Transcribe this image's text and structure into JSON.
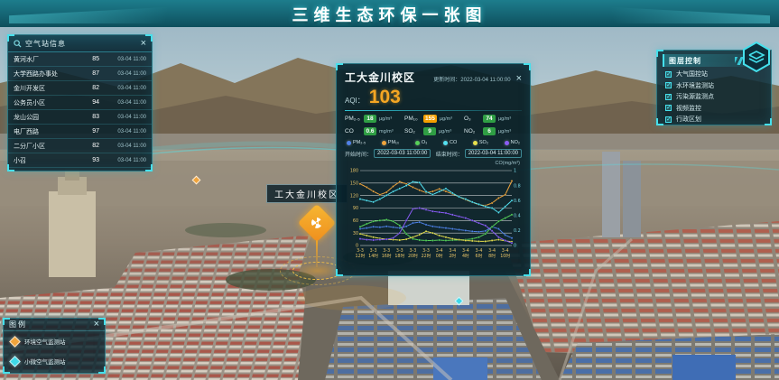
{
  "header": {
    "title": "三维生态环保一张图"
  },
  "station_panel": {
    "title": "空气站信息",
    "rows": [
      {
        "name": "黄河水厂",
        "aqi": "85",
        "time": "03-04 11:00"
      },
      {
        "name": "大学西路办事处",
        "aqi": "87",
        "time": "03-04 11:00"
      },
      {
        "name": "金川开发区",
        "aqi": "82",
        "time": "03-04 11:00"
      },
      {
        "name": "公务员小区",
        "aqi": "94",
        "time": "03-04 11:00"
      },
      {
        "name": "龙山公园",
        "aqi": "83",
        "time": "03-04 11:00"
      },
      {
        "name": "电厂西路",
        "aqi": "97",
        "time": "03-04 11:00"
      },
      {
        "name": "二分厂小区",
        "aqi": "82",
        "time": "03-04 11:00"
      },
      {
        "name": "小召",
        "aqi": "93",
        "time": "03-04 11:00"
      }
    ]
  },
  "popup": {
    "title": "工大金川校区",
    "update_label": "更新时间：",
    "update_time": "2022-03-04 11:00:00",
    "aqi_label": "AQI：",
    "aqi_value": "103",
    "pollutants": [
      {
        "label": "PM₂.₅",
        "value": "18",
        "unit": "µg/m³",
        "level": "good"
      },
      {
        "label": "PM₁₀",
        "value": "155",
        "unit": "µg/m³",
        "level": "moderate"
      },
      {
        "label": "O₃",
        "value": "74",
        "unit": "µg/m³",
        "level": "good"
      },
      {
        "label": "CO",
        "value": "0.6",
        "unit": "mg/m³",
        "level": "good"
      },
      {
        "label": "SO₂",
        "value": "9",
        "unit": "µg/m³",
        "level": "good"
      },
      {
        "label": "NO₂",
        "value": "6",
        "unit": "µg/m³",
        "level": "good"
      }
    ],
    "start_label": "开始时间：",
    "start_time": "2022-03-03 11:00:00",
    "end_label": "结束时间：",
    "end_time": "2022-03-04 11:00:00",
    "right_axis_note": "CO(mg/m³)"
  },
  "chart_data": {
    "type": "line",
    "x": [
      "3-3 12时",
      "3-3 13时",
      "3-3 14时",
      "3-3 15时",
      "3-3 16时",
      "3-3 17时",
      "3-3 18时",
      "3-3 19时",
      "3-3 20时",
      "3-3 21时",
      "3-3 22时",
      "3-3 23时",
      "3-4 0时",
      "3-4 1时",
      "3-4 2时",
      "3-4 3时",
      "3-4 4时",
      "3-4 5时",
      "3-4 6时",
      "3-4 7时",
      "3-4 8时",
      "3-4 9时",
      "3-4 10时",
      "3-4 11时"
    ],
    "x_label_step": 2,
    "ylim_left": [
      0,
      180
    ],
    "ytick_step_left": 30,
    "ylim_right": [
      0,
      1
    ],
    "ytick_step_right": 0.2,
    "grid": true,
    "legend_position": "above-chart",
    "series": [
      {
        "name": "PM₂.₅",
        "color": "#4f81e8",
        "axis": "left",
        "values": [
          40,
          42,
          45,
          44,
          46,
          44,
          42,
          46,
          54,
          56,
          50,
          46,
          44,
          42,
          40,
          38,
          36,
          34,
          33,
          35,
          45,
          40,
          25,
          18
        ]
      },
      {
        "name": "PM₁₀",
        "color": "#f0a43c",
        "axis": "left",
        "values": [
          148,
          140,
          130,
          122,
          128,
          142,
          153,
          148,
          140,
          133,
          127,
          130,
          136,
          130,
          124,
          117,
          110,
          104,
          98,
          96,
          102,
          114,
          122,
          155
        ]
      },
      {
        "name": "O₃",
        "color": "#56d058",
        "axis": "left",
        "values": [
          45,
          52,
          58,
          60,
          62,
          58,
          48,
          28,
          16,
          13,
          12,
          12,
          13,
          12,
          13,
          13,
          14,
          16,
          20,
          28,
          45,
          58,
          66,
          74
        ]
      },
      {
        "name": "CO",
        "color": "#53e0f0",
        "axis": "right",
        "values": [
          0.62,
          0.6,
          0.58,
          0.62,
          0.67,
          0.72,
          0.76,
          0.8,
          0.85,
          0.84,
          0.72,
          0.68,
          0.72,
          0.76,
          0.7,
          0.65,
          0.62,
          0.58,
          0.55,
          0.52,
          0.5,
          0.44,
          0.52,
          0.6
        ]
      },
      {
        "name": "SO₂",
        "color": "#e8e04c",
        "axis": "left",
        "values": [
          28,
          24,
          20,
          17,
          15,
          14,
          13,
          15,
          20,
          26,
          34,
          30,
          24,
          20,
          16,
          14,
          12,
          11,
          10,
          10,
          12,
          14,
          11,
          9
        ]
      },
      {
        "name": "NO₂",
        "color": "#8a5cf5",
        "axis": "left",
        "values": [
          16,
          14,
          13,
          14,
          15,
          18,
          30,
          60,
          88,
          90,
          86,
          82,
          80,
          78,
          74,
          70,
          66,
          60,
          54,
          48,
          35,
          20,
          12,
          6
        ]
      }
    ]
  },
  "layer_panel": {
    "title": "图层控制",
    "items": [
      {
        "label": "大气国控站",
        "checked": true
      },
      {
        "label": "水环境监测站",
        "checked": true
      },
      {
        "label": "污染源监测点",
        "checked": true
      },
      {
        "label": "视频监控",
        "checked": true
      },
      {
        "label": "行政区划",
        "checked": true
      }
    ]
  },
  "legend_panel": {
    "title": "图例",
    "items": [
      {
        "label": "环境空气监测站",
        "color": "#f0a43c"
      },
      {
        "label": "小微空气监测站",
        "color": "#3fd8e8"
      }
    ]
  },
  "map": {
    "marker_label": "工大金川校区"
  },
  "colors": {
    "accent_cyan": "#45e0ec",
    "aqi_orange": "#f5a623",
    "good_green": "#2f9e44",
    "panel_bg": "#08212b"
  }
}
